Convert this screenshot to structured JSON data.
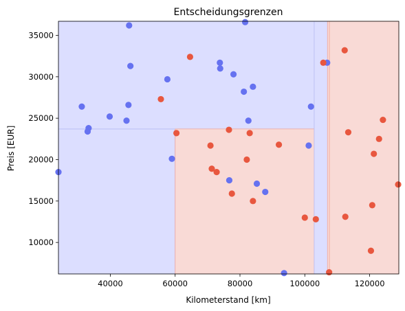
{
  "chart_data": {
    "type": "scatter",
    "title": "Entscheidungsgrenzen",
    "xlabel": "Kilometerstand [km]",
    "ylabel": "Preis [EUR]",
    "xlim": [
      24000,
      129000
    ],
    "ylim": [
      6200,
      36700
    ],
    "xticks": [
      40000,
      60000,
      80000,
      100000,
      120000
    ],
    "yticks": [
      10000,
      15000,
      20000,
      25000,
      30000,
      35000
    ],
    "grid": false,
    "legend": "none",
    "colors": {
      "class_blue": "#6672F0",
      "class_red": "#E8573F",
      "region_blue": "#DCDEFF",
      "region_red": "#F9DAD6",
      "boundary_blue": "#B8BCF2",
      "boundary_red": "#F0A89C"
    },
    "decision_regions": [
      {
        "x": [
          24000,
          60000
        ],
        "y": [
          6200,
          23700
        ],
        "class": "blue"
      },
      {
        "x": [
          24000,
          102900
        ],
        "y": [
          23700,
          36700
        ],
        "class": "blue"
      },
      {
        "x": [
          60000,
          102900
        ],
        "y": [
          6200,
          23700
        ],
        "class": "red"
      },
      {
        "x": [
          102900,
          107000
        ],
        "y": [
          6200,
          36700
        ],
        "class": "blue"
      },
      {
        "x": [
          107000,
          107600
        ],
        "y": [
          6200,
          36700
        ],
        "class": "red"
      },
      {
        "x": [
          107600,
          129000
        ],
        "y": [
          6200,
          36700
        ],
        "class": "red"
      }
    ],
    "series": [
      {
        "class": "blue",
        "points": [
          [
            24000,
            18500
          ],
          [
            31200,
            26400
          ],
          [
            33000,
            23400
          ],
          [
            33300,
            23800
          ],
          [
            39800,
            25200
          ],
          [
            45000,
            24700
          ],
          [
            45600,
            26600
          ],
          [
            45800,
            36200
          ],
          [
            46200,
            31300
          ],
          [
            57600,
            29700
          ],
          [
            59000,
            20100
          ],
          [
            73800,
            31700
          ],
          [
            73900,
            31000
          ],
          [
            76700,
            17500
          ],
          [
            78000,
            30300
          ],
          [
            81200,
            28200
          ],
          [
            81600,
            36600
          ],
          [
            82600,
            24700
          ],
          [
            84000,
            28800
          ],
          [
            85200,
            17100
          ],
          [
            87800,
            16100
          ],
          [
            93600,
            6300
          ],
          [
            101200,
            21700
          ],
          [
            101900,
            26400
          ],
          [
            106900,
            31700
          ]
        ]
      },
      {
        "class": "red",
        "points": [
          [
            55600,
            27300
          ],
          [
            60400,
            23200
          ],
          [
            64600,
            32400
          ],
          [
            70900,
            21700
          ],
          [
            71300,
            18900
          ],
          [
            72800,
            18500
          ],
          [
            76600,
            23600
          ],
          [
            77500,
            15900
          ],
          [
            82100,
            20000
          ],
          [
            83000,
            23200
          ],
          [
            84000,
            15000
          ],
          [
            92000,
            21800
          ],
          [
            100000,
            13000
          ],
          [
            103400,
            12800
          ],
          [
            105700,
            31700
          ],
          [
            107500,
            6400
          ],
          [
            112300,
            33200
          ],
          [
            112500,
            13100
          ],
          [
            113400,
            23300
          ],
          [
            120400,
            9000
          ],
          [
            120800,
            14500
          ],
          [
            121300,
            20700
          ],
          [
            122900,
            22500
          ],
          [
            124100,
            24800
          ],
          [
            128800,
            17000
          ]
        ]
      }
    ]
  }
}
